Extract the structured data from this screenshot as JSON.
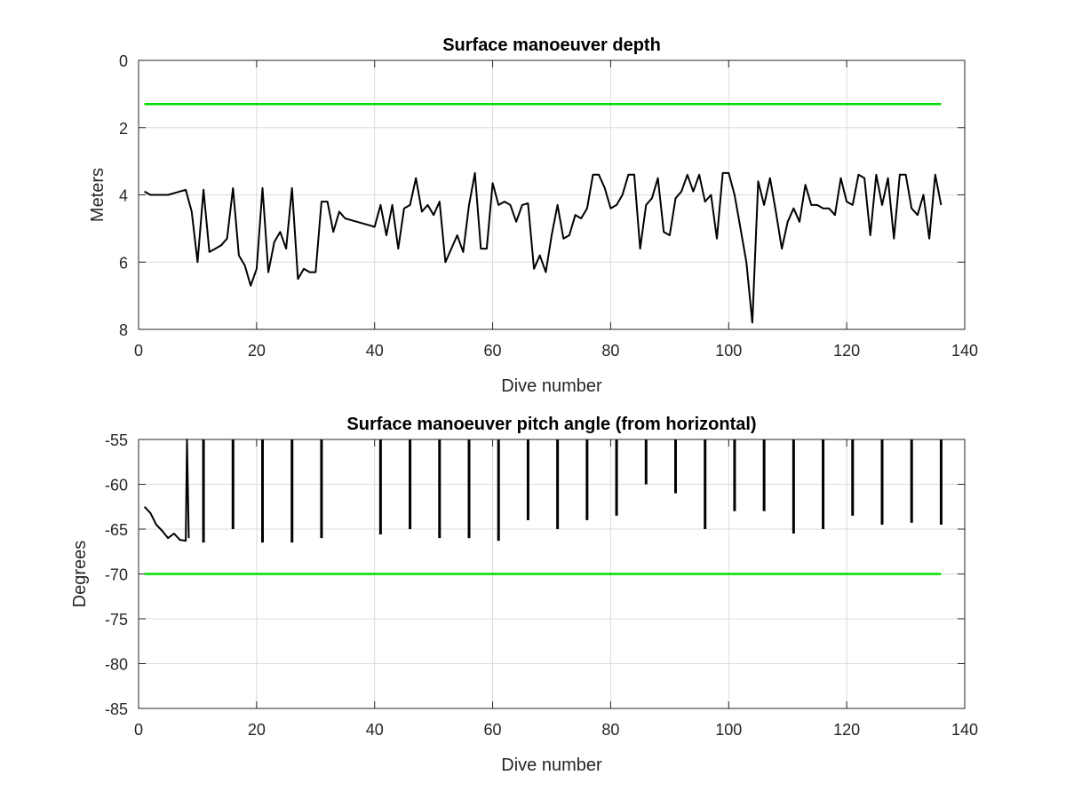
{
  "chart_data": [
    {
      "type": "line",
      "title": "Surface manoeuver depth",
      "xlabel": "Dive number",
      "ylabel": "Meters",
      "xlim": [
        0,
        140
      ],
      "ylim": [
        0,
        8
      ],
      "y_reversed": true,
      "grid": true,
      "xticks": [
        "0",
        "20",
        "40",
        "60",
        "80",
        "100",
        "120",
        "140"
      ],
      "yticks": [
        "0",
        "2",
        "4",
        "6",
        "8"
      ],
      "series": [
        {
          "color": "#00dd00",
          "x": [
            1,
            136
          ],
          "y": [
            1.3,
            1.3
          ]
        },
        {
          "color": "#000000",
          "x": [
            1,
            2,
            3,
            4,
            5,
            6,
            7,
            8,
            9,
            10,
            11,
            12,
            13,
            14,
            15,
            16,
            17,
            18,
            19,
            20,
            21,
            22,
            23,
            24,
            25,
            26,
            27,
            28,
            29,
            30,
            31,
            32,
            33,
            34,
            35,
            36,
            37,
            38,
            39,
            40,
            41,
            42,
            43,
            44,
            45,
            46,
            47,
            48,
            49,
            50,
            51,
            52,
            53,
            54,
            55,
            56,
            57,
            58,
            59,
            60,
            61,
            62,
            63,
            64,
            65,
            66,
            67,
            68,
            69,
            70,
            71,
            72,
            73,
            74,
            75,
            76,
            77,
            78,
            79,
            80,
            81,
            82,
            83,
            84,
            85,
            86,
            87,
            88,
            89,
            90,
            91,
            92,
            93,
            94,
            95,
            96,
            97,
            98,
            99,
            100,
            101,
            102,
            103,
            104,
            105,
            106,
            107,
            108,
            109,
            110,
            111,
            112,
            113,
            114,
            115,
            116,
            117,
            118,
            119,
            120,
            121,
            122,
            123,
            124,
            125,
            126,
            127,
            128,
            129,
            130,
            131,
            132,
            133,
            134,
            135,
            136
          ],
          "y": [
            3.9,
            4.0,
            4.0,
            4.0,
            4.0,
            3.95,
            3.9,
            3.85,
            4.5,
            6.0,
            3.85,
            5.7,
            5.6,
            5.5,
            5.3,
            3.8,
            5.8,
            6.1,
            6.7,
            6.2,
            3.8,
            6.3,
            5.4,
            5.1,
            5.6,
            3.8,
            6.5,
            6.2,
            6.3,
            6.3,
            4.2,
            4.2,
            5.1,
            4.5,
            4.7,
            4.75,
            4.8,
            4.85,
            4.9,
            4.95,
            4.3,
            5.2,
            4.3,
            5.6,
            4.4,
            4.3,
            3.5,
            4.5,
            4.3,
            4.6,
            4.2,
            6.0,
            5.6,
            5.2,
            5.7,
            4.3,
            3.35,
            5.6,
            5.6,
            3.65,
            4.3,
            4.2,
            4.3,
            4.8,
            4.3,
            4.25,
            6.2,
            5.8,
            6.3,
            5.2,
            4.3,
            5.3,
            5.2,
            4.6,
            4.7,
            4.4,
            3.4,
            3.4,
            3.8,
            4.4,
            4.3,
            4.0,
            3.4,
            3.4,
            5.6,
            4.3,
            4.1,
            3.5,
            5.1,
            5.2,
            4.1,
            3.9,
            3.4,
            3.9,
            3.4,
            4.2,
            4.0,
            5.3,
            3.35,
            3.35,
            4.0,
            5.0,
            6.0,
            7.8,
            3.6,
            4.3,
            3.5,
            4.5,
            5.6,
            4.8,
            4.4,
            4.8,
            3.7,
            4.3,
            4.3,
            4.4,
            4.4,
            4.6,
            3.5,
            4.2,
            4.3,
            3.4,
            3.5,
            5.2,
            3.4,
            4.3,
            3.5,
            5.3,
            3.4,
            3.4,
            4.4,
            4.6,
            4.0,
            5.3,
            3.4,
            4.3
          ]
        }
      ]
    },
    {
      "type": "line",
      "title": "Surface manoeuver pitch angle (from horizontal)",
      "xlabel": "Dive number",
      "ylabel": "Degrees",
      "xlim": [
        0,
        140
      ],
      "ylim": [
        -85,
        -55
      ],
      "grid": true,
      "xticks": [
        "0",
        "20",
        "40",
        "60",
        "80",
        "100",
        "120",
        "140"
      ],
      "yticks": [
        "-55",
        "-60",
        "-65",
        "-70",
        "-75",
        "-80",
        "-85"
      ],
      "series": [
        {
          "color": "#00dd00",
          "x": [
            1,
            136
          ],
          "y": [
            -70,
            -70
          ]
        },
        {
          "color": "#000000",
          "x": [
            1,
            2,
            3,
            4,
            5,
            6,
            7,
            8,
            8.2,
            8.5
          ],
          "y": [
            -62.5,
            -63.2,
            -64.5,
            -65.2,
            -66.0,
            -65.5,
            -66.2,
            -66.3,
            -55,
            -66
          ]
        }
      ],
      "spikes": [
        {
          "x": 11,
          "min": -66.5
        },
        {
          "x": 16,
          "min": -65.0
        },
        {
          "x": 21,
          "min": -66.5
        },
        {
          "x": 26,
          "min": -66.5
        },
        {
          "x": 31,
          "min": -66.0
        },
        {
          "x": 41,
          "min": -65.6
        },
        {
          "x": 46,
          "min": -65.0
        },
        {
          "x": 51,
          "min": -66.0
        },
        {
          "x": 56,
          "min": -66.0
        },
        {
          "x": 61,
          "min": -66.3
        },
        {
          "x": 66,
          "min": -64.0
        },
        {
          "x": 71,
          "min": -65.0
        },
        {
          "x": 76,
          "min": -64.0
        },
        {
          "x": 81,
          "min": -63.5
        },
        {
          "x": 86,
          "min": -60.0
        },
        {
          "x": 91,
          "min": -61.0
        },
        {
          "x": 96,
          "min": -65.0
        },
        {
          "x": 101,
          "min": -63.0
        },
        {
          "x": 106,
          "min": -63.0
        },
        {
          "x": 111,
          "min": -65.5
        },
        {
          "x": 116,
          "min": -65.0
        },
        {
          "x": 121,
          "min": -63.5
        },
        {
          "x": 126,
          "min": -64.5
        },
        {
          "x": 131,
          "min": -64.3
        },
        {
          "x": 136,
          "min": -64.5
        }
      ]
    }
  ]
}
